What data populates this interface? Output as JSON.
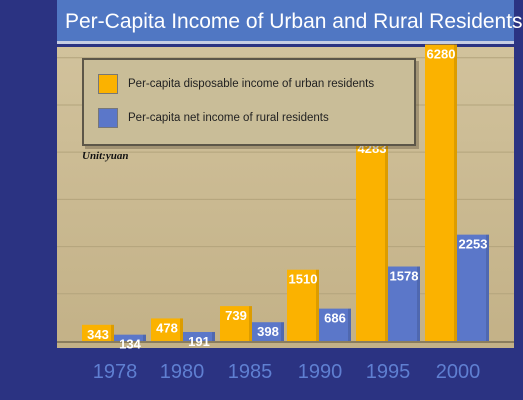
{
  "title": "Per-Capita Income of Urban and Rural Residents",
  "unit": "Unit:yuan",
  "colors": {
    "urban": "#fbb200",
    "rural": "#5b77c9",
    "background": "#2b3382",
    "title_bar": "#5077c3",
    "plot": "#c9b98f"
  },
  "chart_data": {
    "type": "bar",
    "title": "Per-Capita Income of Urban and Rural Residents",
    "xlabel": "",
    "ylabel": "",
    "unit": "Unit:yuan",
    "categories": [
      "1978",
      "1980",
      "1985",
      "1990",
      "1995",
      "2000"
    ],
    "series": [
      {
        "name": "Per-capita disposable income of urban residents",
        "color": "#fbb200",
        "values": [
          343,
          478,
          739,
          1510,
          4283,
          6280
        ]
      },
      {
        "name": "Per-capita net income of rural residents",
        "color": "#5b77c9",
        "values": [
          134,
          191,
          398,
          686,
          1578,
          2253
        ]
      }
    ],
    "ylim": [
      0,
      6800
    ],
    "grid": true,
    "legend_position": "top-left",
    "data_labels": true
  }
}
